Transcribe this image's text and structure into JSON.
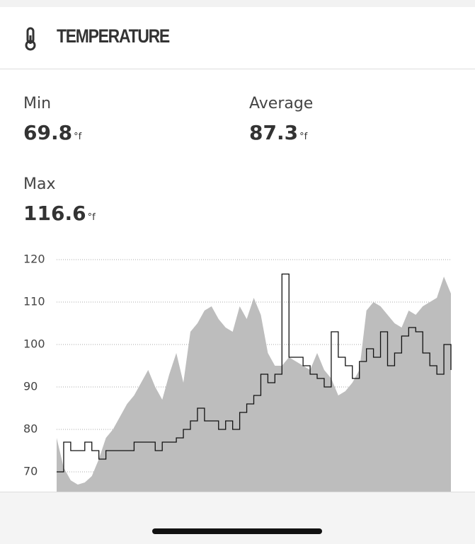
{
  "header": {
    "title": "TEMPERATURE"
  },
  "stats": [
    {
      "label": "Min",
      "value": 69.8,
      "unit": "°f"
    },
    {
      "label": "Average",
      "value": 87.3,
      "unit": "°f"
    },
    {
      "label": "Max",
      "value": 116.6,
      "unit": "°f"
    }
  ],
  "chart_data": {
    "type": "area-line",
    "ylim": [
      65,
      120
    ],
    "yticks": [
      70,
      80,
      90,
      100,
      110,
      120
    ],
    "grid": true,
    "series": [
      {
        "color": "#bdbdbd",
        "values": [
          78,
          71,
          68,
          67,
          67.5,
          69,
          73,
          78,
          80,
          83,
          86,
          88,
          91,
          94,
          90,
          87,
          93,
          98,
          91,
          103,
          105,
          108,
          109,
          106,
          104,
          103,
          109,
          106,
          111,
          107,
          98,
          95,
          95,
          97,
          96,
          95,
          94,
          98,
          94,
          92,
          88,
          89,
          91,
          94,
          108,
          110,
          109,
          107,
          105,
          104,
          108,
          107,
          109,
          110,
          111,
          116,
          112
        ]
      },
      {
        "color": "#111111",
        "values": [
          70,
          77,
          75,
          75,
          77,
          75,
          73,
          75,
          75,
          75,
          75,
          77,
          77,
          77,
          75,
          77,
          77,
          78,
          80,
          82,
          85,
          82,
          82,
          80,
          82,
          80,
          84,
          86,
          88,
          93,
          91,
          93,
          116.6,
          97,
          97,
          95,
          93,
          92,
          90,
          103,
          97,
          95,
          92,
          96,
          99,
          97,
          103,
          95,
          98,
          102,
          104,
          103,
          98,
          95,
          93,
          100,
          94
        ]
      }
    ]
  }
}
